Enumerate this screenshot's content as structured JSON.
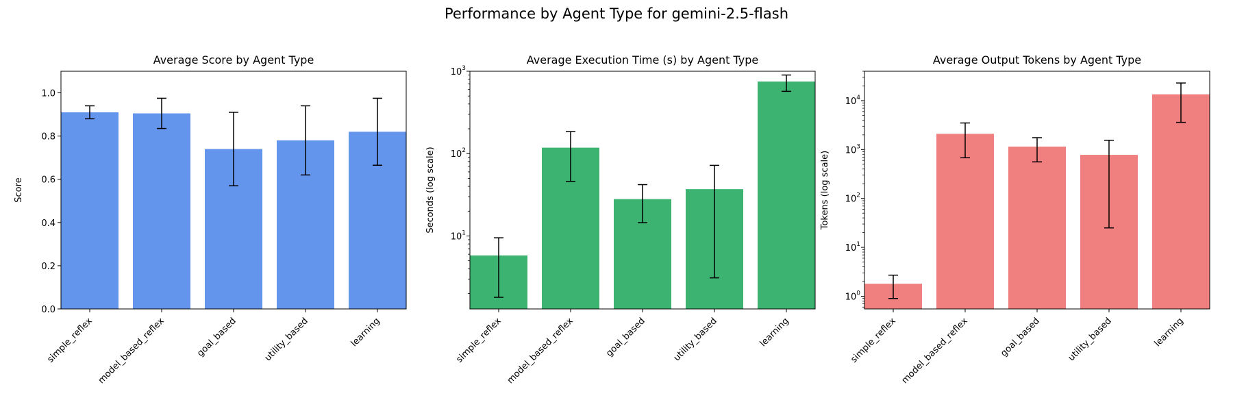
{
  "suptitle": "Performance by Agent Type for gemini-2.5-flash",
  "chart_data": [
    {
      "type": "bar",
      "title": "Average Score by Agent Type",
      "xlabel": "",
      "ylabel": "Score",
      "yscale": "linear",
      "ylim": [
        0,
        1.1
      ],
      "yticks": [
        0.0,
        0.2,
        0.4,
        0.6,
        0.8,
        1.0
      ],
      "ytick_labels": [
        "0.0",
        "0.2",
        "0.4",
        "0.6",
        "0.8",
        "1.0"
      ],
      "color": "#6495ED",
      "categories": [
        "simple_reflex",
        "model_based_reflex",
        "goal_based",
        "utility_based",
        "learning"
      ],
      "values": [
        0.91,
        0.905,
        0.74,
        0.78,
        0.82
      ],
      "err_low": [
        0.88,
        0.835,
        0.57,
        0.62,
        0.665
      ],
      "err_high": [
        0.94,
        0.975,
        0.91,
        0.94,
        0.975
      ]
    },
    {
      "type": "bar",
      "title": "Average Execution Time (s) by Agent Type",
      "xlabel": "",
      "ylabel": "Seconds (log scale)",
      "yscale": "log",
      "ylim": [
        1.3,
        1000
      ],
      "yticks": [
        10,
        100,
        1000
      ],
      "ytick_labels": [
        "10",
        "10",
        "10"
      ],
      "ytick_exps": [
        "1",
        "2",
        "3"
      ],
      "color": "#3CB371",
      "categories": [
        "simple_reflex",
        "model_based_reflex",
        "goal_based",
        "utility_based",
        "learning"
      ],
      "values": [
        5.8,
        118,
        28,
        37,
        750
      ],
      "err_low": [
        1.8,
        46,
        14.5,
        3.1,
        570
      ],
      "err_high": [
        9.5,
        185,
        42,
        72,
        900
      ]
    },
    {
      "type": "bar",
      "title": "Average Output Tokens by Agent Type",
      "xlabel": "",
      "ylabel": "Tokens (log scale)",
      "yscale": "log",
      "ylim": [
        0.55,
        40000
      ],
      "yticks": [
        1,
        10,
        100,
        1000,
        10000
      ],
      "ytick_labels": [
        "10",
        "10",
        "10",
        "10",
        "10"
      ],
      "ytick_exps": [
        "0",
        "1",
        "2",
        "3",
        "4"
      ],
      "color": "#F08080",
      "categories": [
        "simple_reflex",
        "model_based_reflex",
        "goal_based",
        "utility_based",
        "learning"
      ],
      "values": [
        1.8,
        2100,
        1150,
        780,
        13500
      ],
      "err_low": [
        0.9,
        680,
        560,
        25,
        3600
      ],
      "err_high": [
        2.7,
        3500,
        1750,
        1550,
        23000
      ]
    }
  ]
}
